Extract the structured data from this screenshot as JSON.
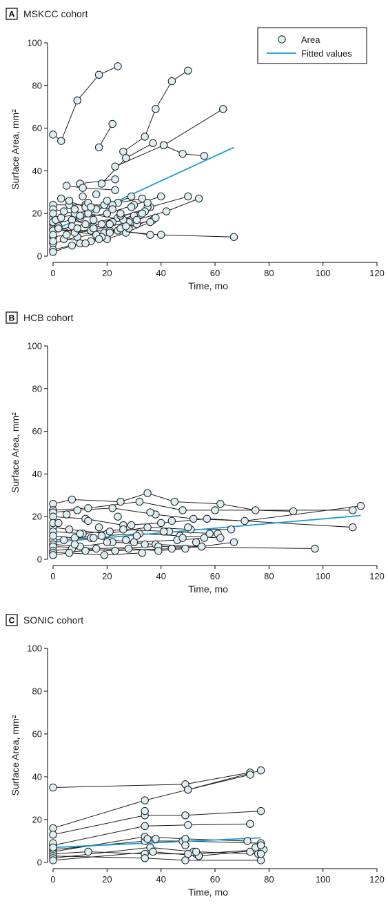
{
  "colors": {
    "fit_line": "#1a9ad6",
    "marker_fill": "#ddeef3",
    "line": "#1a1a1a"
  },
  "legend": {
    "area_label": "Area",
    "fit_label": "Fitted values"
  },
  "chart_data": [
    {
      "type": "line",
      "panel_letter": "A",
      "title": "MSKCC cohort",
      "xlabel": "Time, mo",
      "ylabel": "Surface Area, mm²",
      "xlim": [
        0,
        120
      ],
      "ylim": [
        0,
        100
      ],
      "xticks": [
        "0",
        "20",
        "40",
        "60",
        "80",
        "100",
        "120"
      ],
      "yticks": [
        "0",
        "20",
        "40",
        "60",
        "80",
        "100"
      ],
      "legend_position": "top-right",
      "fitted": {
        "x": [
          0,
          67
        ],
        "y": [
          12,
          51
        ]
      },
      "series": [
        {
          "x": [
            0,
            3,
            9
          ],
          "y": [
            57,
            54,
            73
          ]
        },
        {
          "x": [
            9,
            17,
            24
          ],
          "y": [
            73,
            85,
            89
          ]
        },
        {
          "x": [
            17,
            22
          ],
          "y": [
            51,
            62
          ]
        },
        {
          "x": [
            10,
            23
          ],
          "y": [
            34,
            36
          ]
        },
        {
          "x": [
            26,
            34,
            38,
            44,
            50
          ],
          "y": [
            49,
            56,
            69,
            82,
            87
          ]
        },
        {
          "x": [
            18,
            27,
            37
          ],
          "y": [
            34,
            46,
            53
          ]
        },
        {
          "x": [
            23,
            41,
            48,
            56
          ],
          "y": [
            42,
            52,
            48,
            47
          ]
        },
        {
          "x": [
            41,
            63
          ],
          "y": [
            52,
            69
          ]
        },
        {
          "x": [
            5,
            11,
            23
          ],
          "y": [
            33,
            32,
            31
          ]
        },
        {
          "x": [
            0,
            6,
            12,
            20
          ],
          "y": [
            24,
            24,
            24,
            24
          ]
        },
        {
          "x": [
            0,
            8,
            16,
            24,
            33
          ],
          "y": [
            22,
            20,
            22,
            25,
            27
          ]
        },
        {
          "x": [
            0,
            10,
            20,
            30,
            40
          ],
          "y": [
            15,
            18,
            20,
            24,
            28
          ]
        },
        {
          "x": [
            0,
            12,
            24,
            36,
            50
          ],
          "y": [
            12,
            15,
            18,
            23,
            28
          ]
        },
        {
          "x": [
            0,
            14,
            28,
            42,
            54
          ],
          "y": [
            9,
            12,
            16,
            21,
            27
          ]
        },
        {
          "x": [
            0,
            9,
            19,
            31,
            37
          ],
          "y": [
            6,
            9,
            11,
            15,
            17
          ]
        },
        {
          "x": [
            0,
            10,
            20,
            27,
            36
          ],
          "y": [
            3,
            6,
            8,
            11,
            16
          ]
        },
        {
          "x": [
            0,
            7,
            18,
            28,
            38
          ],
          "y": [
            2,
            5,
            9,
            13,
            18
          ]
        },
        {
          "x": [
            0,
            16,
            24,
            36
          ],
          "y": [
            13,
            10,
            12,
            10
          ]
        },
        {
          "x": [
            0,
            21,
            40,
            67
          ],
          "y": [
            12,
            12,
            10,
            9
          ]
        },
        {
          "x": [
            0,
            13,
            26,
            35
          ],
          "y": [
            18,
            20,
            17,
            23
          ]
        },
        {
          "x": [
            3,
            12,
            22,
            29
          ],
          "y": [
            27,
            23,
            24,
            28
          ]
        },
        {
          "x": [
            7,
            15,
            25,
            34
          ],
          "y": [
            17,
            14,
            19,
            21
          ]
        },
        {
          "x": [
            4,
            14,
            21,
            25
          ],
          "y": [
            8,
            7,
            11,
            13
          ]
        },
        {
          "x": [
            2,
            8,
            15,
            22,
            30
          ],
          "y": [
            14,
            11,
            13,
            16,
            19
          ]
        }
      ],
      "extra_points": {
        "x": [
          0,
          0,
          0,
          0,
          1,
          2,
          3,
          4,
          5,
          6,
          7,
          8,
          9,
          10,
          11,
          12,
          13,
          14,
          15,
          16,
          17,
          18,
          19,
          20,
          21,
          22,
          25,
          27,
          29,
          31,
          33,
          35
        ],
        "y": [
          20,
          16,
          10,
          7,
          17,
          13,
          18,
          21,
          10,
          26,
          14,
          22,
          13,
          19,
          28,
          6,
          25,
          23,
          17,
          29,
          8,
          15,
          24,
          26,
          15,
          22,
          20,
          14,
          23,
          17,
          20,
          25
        ]
      }
    },
    {
      "type": "line",
      "panel_letter": "B",
      "title": "HCB cohort",
      "xlabel": "Time, mo",
      "ylabel": "Surface Area, mm²",
      "xlim": [
        0,
        120
      ],
      "ylim": [
        0,
        100
      ],
      "xticks": [
        "0",
        "20",
        "40",
        "60",
        "80",
        "100",
        "120"
      ],
      "yticks": [
        "0",
        "20",
        "40",
        "60",
        "80",
        "100"
      ],
      "fitted": {
        "x": [
          0,
          114
        ],
        "y": [
          8,
          20.5
        ]
      },
      "series": [
        {
          "x": [
            0,
            7,
            25,
            35,
            45,
            62,
            75,
            89
          ],
          "y": [
            26,
            28,
            27,
            31,
            27,
            26,
            23,
            22.5
          ]
        },
        {
          "x": [
            0,
            13,
            32,
            48,
            60,
            111
          ],
          "y": [
            23,
            24,
            27,
            23,
            23,
            23
          ]
        },
        {
          "x": [
            0,
            9,
            22,
            38,
            52,
            71,
            114
          ],
          "y": [
            22,
            23,
            24,
            21,
            19,
            18,
            25
          ]
        },
        {
          "x": [
            0,
            12,
            26,
            40,
            57,
            111
          ],
          "y": [
            20,
            19,
            16,
            17,
            19,
            15
          ]
        },
        {
          "x": [
            0,
            6,
            20,
            35,
            51,
            66
          ],
          "y": [
            15,
            14,
            12,
            15,
            14,
            14
          ]
        },
        {
          "x": [
            0,
            11,
            26,
            43,
            61
          ],
          "y": [
            13,
            12,
            14,
            13,
            12
          ]
        },
        {
          "x": [
            0,
            8,
            18,
            32,
            47,
            62
          ],
          "y": [
            11,
            10,
            11,
            12,
            11,
            10
          ]
        },
        {
          "x": [
            0,
            14,
            30,
            46,
            56
          ],
          "y": [
            9,
            10,
            8,
            9,
            10
          ]
        },
        {
          "x": [
            0,
            10,
            22,
            38,
            55,
            67
          ],
          "y": [
            7,
            6,
            8,
            7,
            6,
            8
          ]
        },
        {
          "x": [
            0,
            16,
            39,
            97
          ],
          "y": [
            6,
            5,
            6,
            5
          ]
        },
        {
          "x": [
            0,
            7,
            23,
            44,
            55
          ],
          "y": [
            4,
            5,
            4,
            5,
            6
          ]
        },
        {
          "x": [
            0,
            12,
            28,
            39,
            49
          ],
          "y": [
            3,
            4,
            5,
            4,
            5
          ]
        },
        {
          "x": [
            0,
            6,
            19,
            33
          ],
          "y": [
            2,
            3,
            2,
            3
          ]
        }
      ],
      "extra_points": {
        "x": [
          0,
          0,
          2,
          4,
          5,
          8,
          10,
          13,
          15,
          17,
          20,
          21,
          24,
          27,
          29,
          31,
          34,
          36,
          41,
          44,
          48,
          50,
          53,
          58
        ],
        "y": [
          11,
          17,
          17,
          9,
          21,
          7,
          12,
          18,
          10,
          15,
          8,
          13,
          20,
          9,
          16,
          11,
          7,
          22,
          13,
          18,
          10,
          15,
          8,
          12
        ]
      }
    },
    {
      "type": "line",
      "panel_letter": "C",
      "title": "SONIC cohort",
      "xlabel": "Time, mo",
      "ylabel": "Surface Area, mm²",
      "xlim": [
        0,
        120
      ],
      "ylim": [
        0,
        100
      ],
      "xticks": [
        "0",
        "20",
        "40",
        "60",
        "80",
        "100",
        "120"
      ],
      "yticks": [
        "0",
        "20",
        "40",
        "60",
        "80",
        "100"
      ],
      "fitted": {
        "x": [
          0,
          77
        ],
        "y": [
          7,
          11.5
        ]
      },
      "series": [
        {
          "x": [
            0,
            49,
            73
          ],
          "y": [
            35,
            36.5,
            42
          ]
        },
        {
          "x": [
            50,
            77
          ],
          "y": [
            34,
            43
          ]
        },
        {
          "x": [
            0,
            34,
            50,
            73
          ],
          "y": [
            16,
            29,
            34,
            41
          ]
        },
        {
          "x": [
            0,
            34,
            49,
            77
          ],
          "y": [
            13,
            22,
            22,
            24
          ]
        },
        {
          "x": [
            0,
            34,
            50,
            73
          ],
          "y": [
            8,
            17,
            17.5,
            18
          ]
        },
        {
          "x": [
            0,
            34,
            48,
            77
          ],
          "y": [
            6,
            10,
            10,
            9
          ]
        },
        {
          "x": [
            0,
            34,
            49,
            72
          ],
          "y": [
            5,
            12,
            11,
            10
          ]
        },
        {
          "x": [
            0,
            13,
            34,
            53,
            77
          ],
          "y": [
            4,
            5,
            4,
            4,
            6
          ]
        },
        {
          "x": [
            0,
            34,
            49,
            77
          ],
          "y": [
            3,
            2,
            1,
            1
          ]
        },
        {
          "x": [
            0,
            36,
            52,
            76
          ],
          "y": [
            2,
            7,
            5,
            4
          ]
        },
        {
          "x": [
            0,
            37,
            54,
            78
          ],
          "y": [
            1,
            5,
            3,
            6
          ]
        }
      ],
      "extra_points": {
        "x": [
          0,
          0,
          34,
          35,
          38,
          49,
          50,
          53,
          73,
          75,
          77,
          77
        ],
        "y": [
          9,
          7,
          24,
          11,
          11,
          8,
          4,
          5,
          5,
          7,
          8,
          4
        ]
      }
    }
  ]
}
